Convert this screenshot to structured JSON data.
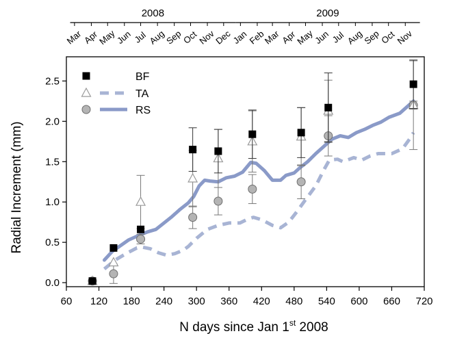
{
  "chart_data": {
    "type": "scatter",
    "title": "",
    "xlabel_main": "N days since Jan 1",
    "xlabel_sup": "st",
    "xlabel_tail": " 2008",
    "ylabel": "Radial Increment (mm)",
    "xlim": [
      60,
      720
    ],
    "ylim": [
      -0.05,
      2.8
    ],
    "xticks": [
      60,
      120,
      180,
      240,
      300,
      360,
      420,
      480,
      540,
      600,
      660,
      720
    ],
    "yticks": [
      0.0,
      0.5,
      1.0,
      1.5,
      2.0,
      2.5
    ],
    "ytick_labels": [
      "0.0",
      "0.5",
      "1.0",
      "1.5",
      "2.0",
      "2.5"
    ],
    "grid": false,
    "legend_position": "top-left",
    "top_axis": {
      "years": [
        {
          "label": "2008",
          "start": 67,
          "end": 372
        },
        {
          "label": "2009",
          "start": 372,
          "end": 712
        }
      ],
      "months": [
        {
          "label": "Mar",
          "day": 75
        },
        {
          "label": "Apr",
          "day": 106
        },
        {
          "label": "May",
          "day": 136
        },
        {
          "label": "Jun",
          "day": 167
        },
        {
          "label": "Jul",
          "day": 197
        },
        {
          "label": "Aug",
          "day": 228
        },
        {
          "label": "Sep",
          "day": 259
        },
        {
          "label": "Oct",
          "day": 289
        },
        {
          "label": "Nov",
          "day": 320
        },
        {
          "label": "Dec",
          "day": 350
        },
        {
          "label": "Jan",
          "day": 381
        },
        {
          "label": "Feb",
          "day": 412
        },
        {
          "label": "Mar",
          "day": 440
        },
        {
          "label": "Apr",
          "day": 471
        },
        {
          "label": "May",
          "day": 501
        },
        {
          "label": "Jun",
          "day": 532
        },
        {
          "label": "Jul",
          "day": 562
        },
        {
          "label": "Aug",
          "day": 593
        },
        {
          "label": "Sep",
          "day": 624
        },
        {
          "label": "Oct",
          "day": 654
        },
        {
          "label": "Nov",
          "day": 685
        }
      ]
    },
    "series": [
      {
        "name": "BF",
        "kind": "points",
        "marker": "square",
        "color": "#000000",
        "points": [
          {
            "x": 108,
            "y": 0.02,
            "err": null
          },
          {
            "x": 147,
            "y": 0.43,
            "err": null
          },
          {
            "x": 197,
            "y": 0.66,
            "err": null
          },
          {
            "x": 293,
            "y": 1.65,
            "err": 0.27
          },
          {
            "x": 340,
            "y": 1.63,
            "err": 0.27
          },
          {
            "x": 403,
            "y": 1.84,
            "err": 0.3
          },
          {
            "x": 493,
            "y": 1.86,
            "err": 0.31
          },
          {
            "x": 543,
            "y": 2.17,
            "err": 0.43
          },
          {
            "x": 700,
            "y": 2.46,
            "err": 0.3
          }
        ]
      },
      {
        "name": "TA",
        "kind": "points",
        "marker": "triangle",
        "color": "#9a9a9a",
        "points": [
          {
            "x": 108,
            "y": 0.02,
            "err": null
          },
          {
            "x": 147,
            "y": 0.25,
            "err": null
          },
          {
            "x": 197,
            "y": 1.0,
            "err": 0.33
          },
          {
            "x": 293,
            "y": 1.29,
            "err": 0.35
          },
          {
            "x": 340,
            "y": 1.54,
            "err": 0.36
          },
          {
            "x": 403,
            "y": 1.75,
            "err": 0.38
          },
          {
            "x": 493,
            "y": 1.81,
            "err": 0.36
          },
          {
            "x": 543,
            "y": 2.13,
            "err": 0.38
          },
          {
            "x": 700,
            "y": 2.2,
            "err": 0.55
          }
        ]
      },
      {
        "name": "RS",
        "kind": "points",
        "marker": "circle",
        "color": "#b4b4b4",
        "points": [
          {
            "x": 108,
            "y": 0.02,
            "err": null
          },
          {
            "x": 147,
            "y": 0.11,
            "err": 0.12
          },
          {
            "x": 197,
            "y": 0.54,
            "err": 0.06
          },
          {
            "x": 293,
            "y": 0.81,
            "err": 0.14
          },
          {
            "x": 340,
            "y": 1.01,
            "err": 0.17
          },
          {
            "x": 403,
            "y": 1.16,
            "err": 0.18
          },
          {
            "x": 493,
            "y": 1.25,
            "err": 0.21
          },
          {
            "x": 543,
            "y": 1.82,
            "err": 0.25
          },
          {
            "x": 700,
            "y": 2.2,
            "err": 0.05
          }
        ]
      },
      {
        "name": "TA",
        "kind": "line",
        "style": "dashed",
        "color": "#a8b4d4",
        "points": [
          [
            130,
            0.17
          ],
          [
            150,
            0.28
          ],
          [
            170,
            0.36
          ],
          [
            190,
            0.43
          ],
          [
            200,
            0.44
          ],
          [
            215,
            0.42
          ],
          [
            230,
            0.37
          ],
          [
            245,
            0.34
          ],
          [
            260,
            0.36
          ],
          [
            275,
            0.4
          ],
          [
            285,
            0.45
          ],
          [
            300,
            0.55
          ],
          [
            320,
            0.66
          ],
          [
            340,
            0.71
          ],
          [
            360,
            0.74
          ],
          [
            380,
            0.74
          ],
          [
            395,
            0.79
          ],
          [
            405,
            0.81
          ],
          [
            420,
            0.78
          ],
          [
            440,
            0.71
          ],
          [
            455,
            0.68
          ],
          [
            470,
            0.75
          ],
          [
            485,
            0.88
          ],
          [
            500,
            1.02
          ],
          [
            520,
            1.2
          ],
          [
            535,
            1.4
          ],
          [
            545,
            1.52
          ],
          [
            560,
            1.53
          ],
          [
            570,
            1.5
          ],
          [
            590,
            1.55
          ],
          [
            605,
            1.52
          ],
          [
            620,
            1.57
          ],
          [
            635,
            1.6
          ],
          [
            660,
            1.6
          ],
          [
            680,
            1.66
          ],
          [
            695,
            1.8
          ],
          [
            700,
            1.86
          ]
        ]
      },
      {
        "name": "RS",
        "kind": "line",
        "style": "solid",
        "color": "#8a9ac8",
        "points": [
          [
            130,
            0.28
          ],
          [
            145,
            0.39
          ],
          [
            160,
            0.46
          ],
          [
            175,
            0.53
          ],
          [
            195,
            0.59
          ],
          [
            210,
            0.63
          ],
          [
            225,
            0.66
          ],
          [
            240,
            0.74
          ],
          [
            255,
            0.82
          ],
          [
            270,
            0.91
          ],
          [
            285,
            0.99
          ],
          [
            295,
            1.07
          ],
          [
            305,
            1.2
          ],
          [
            315,
            1.27
          ],
          [
            325,
            1.26
          ],
          [
            340,
            1.25
          ],
          [
            355,
            1.3
          ],
          [
            370,
            1.32
          ],
          [
            385,
            1.37
          ],
          [
            400,
            1.49
          ],
          [
            410,
            1.48
          ],
          [
            425,
            1.39
          ],
          [
            440,
            1.27
          ],
          [
            455,
            1.27
          ],
          [
            465,
            1.33
          ],
          [
            480,
            1.36
          ],
          [
            490,
            1.42
          ],
          [
            505,
            1.5
          ],
          [
            520,
            1.6
          ],
          [
            535,
            1.69
          ],
          [
            550,
            1.78
          ],
          [
            565,
            1.82
          ],
          [
            580,
            1.8
          ],
          [
            595,
            1.86
          ],
          [
            610,
            1.9
          ],
          [
            625,
            1.95
          ],
          [
            640,
            1.99
          ],
          [
            655,
            2.05
          ],
          [
            675,
            2.1
          ],
          [
            690,
            2.19
          ],
          [
            700,
            2.25
          ]
        ]
      }
    ]
  }
}
